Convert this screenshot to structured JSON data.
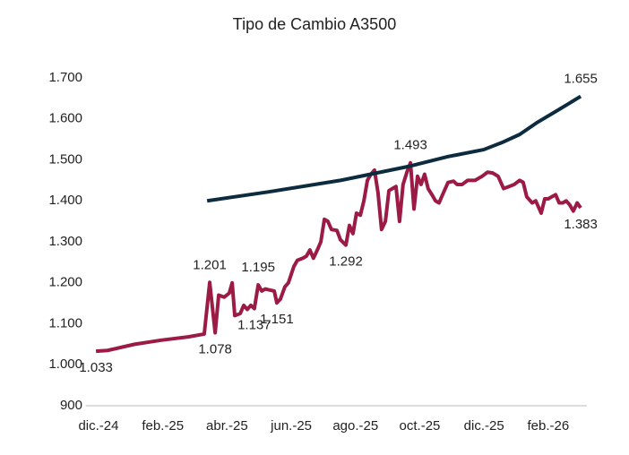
{
  "chart_data": {
    "type": "line",
    "title": "Tipo de Cambio A3500",
    "xlim": [
      -0.4,
      15.2
    ],
    "xticks": [
      {
        "value": 0,
        "label": "dic.-24"
      },
      {
        "value": 2,
        "label": "feb.-25"
      },
      {
        "value": 4,
        "label": "abr.-25"
      },
      {
        "value": 6,
        "label": "jun.-25"
      },
      {
        "value": 8,
        "label": "ago.-25"
      },
      {
        "value": 10,
        "label": "oct.-25"
      },
      {
        "value": 12,
        "label": "dic.-25"
      },
      {
        "value": 14,
        "label": "feb.-26"
      }
    ],
    "ylim": [
      900,
      1700
    ],
    "yticks": [
      900,
      {
        "value": 1000,
        "label": "1.000"
      },
      {
        "value": 1100,
        "label": "1.100"
      },
      {
        "value": 1200,
        "label": "1.200"
      },
      {
        "value": 1300,
        "label": "1.300"
      },
      {
        "value": 1400,
        "label": "1.400"
      },
      {
        "value": 1500,
        "label": "1.500"
      },
      {
        "value": 1600,
        "label": "1.600"
      },
      {
        "value": 1700,
        "label": "1.700"
      }
    ],
    "grid": false,
    "series": [
      {
        "color": "#9b1b45",
        "x": [
          -0.08,
          0.28,
          1.12,
          1.95,
          2.79,
          3.29,
          3.46,
          3.63,
          3.74,
          3.91,
          4.07,
          4.16,
          4.24,
          4.41,
          4.52,
          4.63,
          4.74,
          4.85,
          4.97,
          5.08,
          5.19,
          5.3,
          5.47,
          5.55,
          5.66,
          5.8,
          5.91,
          6.08,
          6.19,
          6.36,
          6.47,
          6.58,
          6.69,
          6.81,
          6.92,
          7.03,
          7.14,
          7.25,
          7.42,
          7.53,
          7.7,
          7.81,
          7.92,
          8.03,
          8.15,
          8.26,
          8.37,
          8.48,
          8.59,
          8.7,
          8.81,
          8.93,
          9.04,
          9.15,
          9.26,
          9.37,
          9.48,
          9.6,
          9.71,
          9.82,
          9.93,
          10.04,
          10.15,
          10.26,
          10.38,
          10.49,
          10.6,
          10.71,
          10.88,
          11.05,
          11.16,
          11.32,
          11.49,
          11.72,
          11.94,
          12.11,
          12.27,
          12.44,
          12.61,
          12.78,
          12.94,
          13.11,
          13.22,
          13.33,
          13.5,
          13.61,
          13.78,
          13.89,
          14.0,
          14.11,
          14.23,
          14.34,
          14.45,
          14.56,
          14.67,
          14.78,
          14.9,
          15.01
        ],
        "values": [
          1033,
          1035,
          1050,
          1060,
          1068,
          1075,
          1201,
          1078,
          1170,
          1165,
          1175,
          1200,
          1120,
          1125,
          1145,
          1135,
          1145,
          1137,
          1195,
          1180,
          1185,
          1183,
          1180,
          1151,
          1160,
          1190,
          1200,
          1240,
          1255,
          1260,
          1265,
          1280,
          1260,
          1280,
          1300,
          1355,
          1350,
          1330,
          1328,
          1305,
          1292,
          1340,
          1320,
          1370,
          1365,
          1400,
          1450,
          1465,
          1475,
          1420,
          1330,
          1350,
          1425,
          1430,
          1435,
          1350,
          1440,
          1470,
          1493,
          1380,
          1460,
          1440,
          1465,
          1430,
          1415,
          1400,
          1395,
          1415,
          1445,
          1448,
          1440,
          1440,
          1450,
          1450,
          1460,
          1470,
          1468,
          1460,
          1430,
          1435,
          1440,
          1450,
          1445,
          1410,
          1395,
          1400,
          1370,
          1405,
          1405,
          1410,
          1415,
          1395,
          1395,
          1400,
          1390,
          1375,
          1395,
          1383
        ],
        "value_labels": [
          "1.033",
          null,
          null,
          null,
          null,
          null,
          "1.201",
          "1.078",
          null,
          null,
          null,
          null,
          null,
          null,
          null,
          null,
          null,
          "1.137",
          "1.195",
          null,
          null,
          null,
          null,
          "1.151",
          null,
          null,
          null,
          null,
          null,
          null,
          null,
          null,
          null,
          null,
          null,
          null,
          null,
          null,
          null,
          null,
          "1.292",
          null,
          null,
          null,
          null,
          null,
          null,
          null,
          null,
          null,
          null,
          null,
          null,
          null,
          null,
          null,
          null,
          null,
          "1.493",
          null,
          null,
          null,
          null,
          null,
          null,
          null,
          null,
          null,
          null,
          null,
          null,
          null,
          null,
          null,
          null,
          null,
          null,
          null,
          null,
          null,
          null,
          null,
          null,
          null,
          null,
          null,
          null,
          null,
          null,
          null,
          null,
          null,
          null,
          null,
          null,
          null,
          null,
          "1.383"
        ]
      },
      {
        "color": "#0d2b3e",
        "x": [
          3.38,
          5.3,
          7.53,
          9.71,
          10.88,
          11.99,
          12.55,
          13.11,
          13.67,
          14.23,
          15.01
        ],
        "values": [
          1400,
          1422,
          1450,
          1485,
          1508,
          1525,
          1542,
          1562,
          1592,
          1618,
          1655
        ],
        "value_labels": [
          null,
          null,
          null,
          null,
          null,
          null,
          null,
          null,
          null,
          null,
          "1.655"
        ]
      }
    ]
  }
}
